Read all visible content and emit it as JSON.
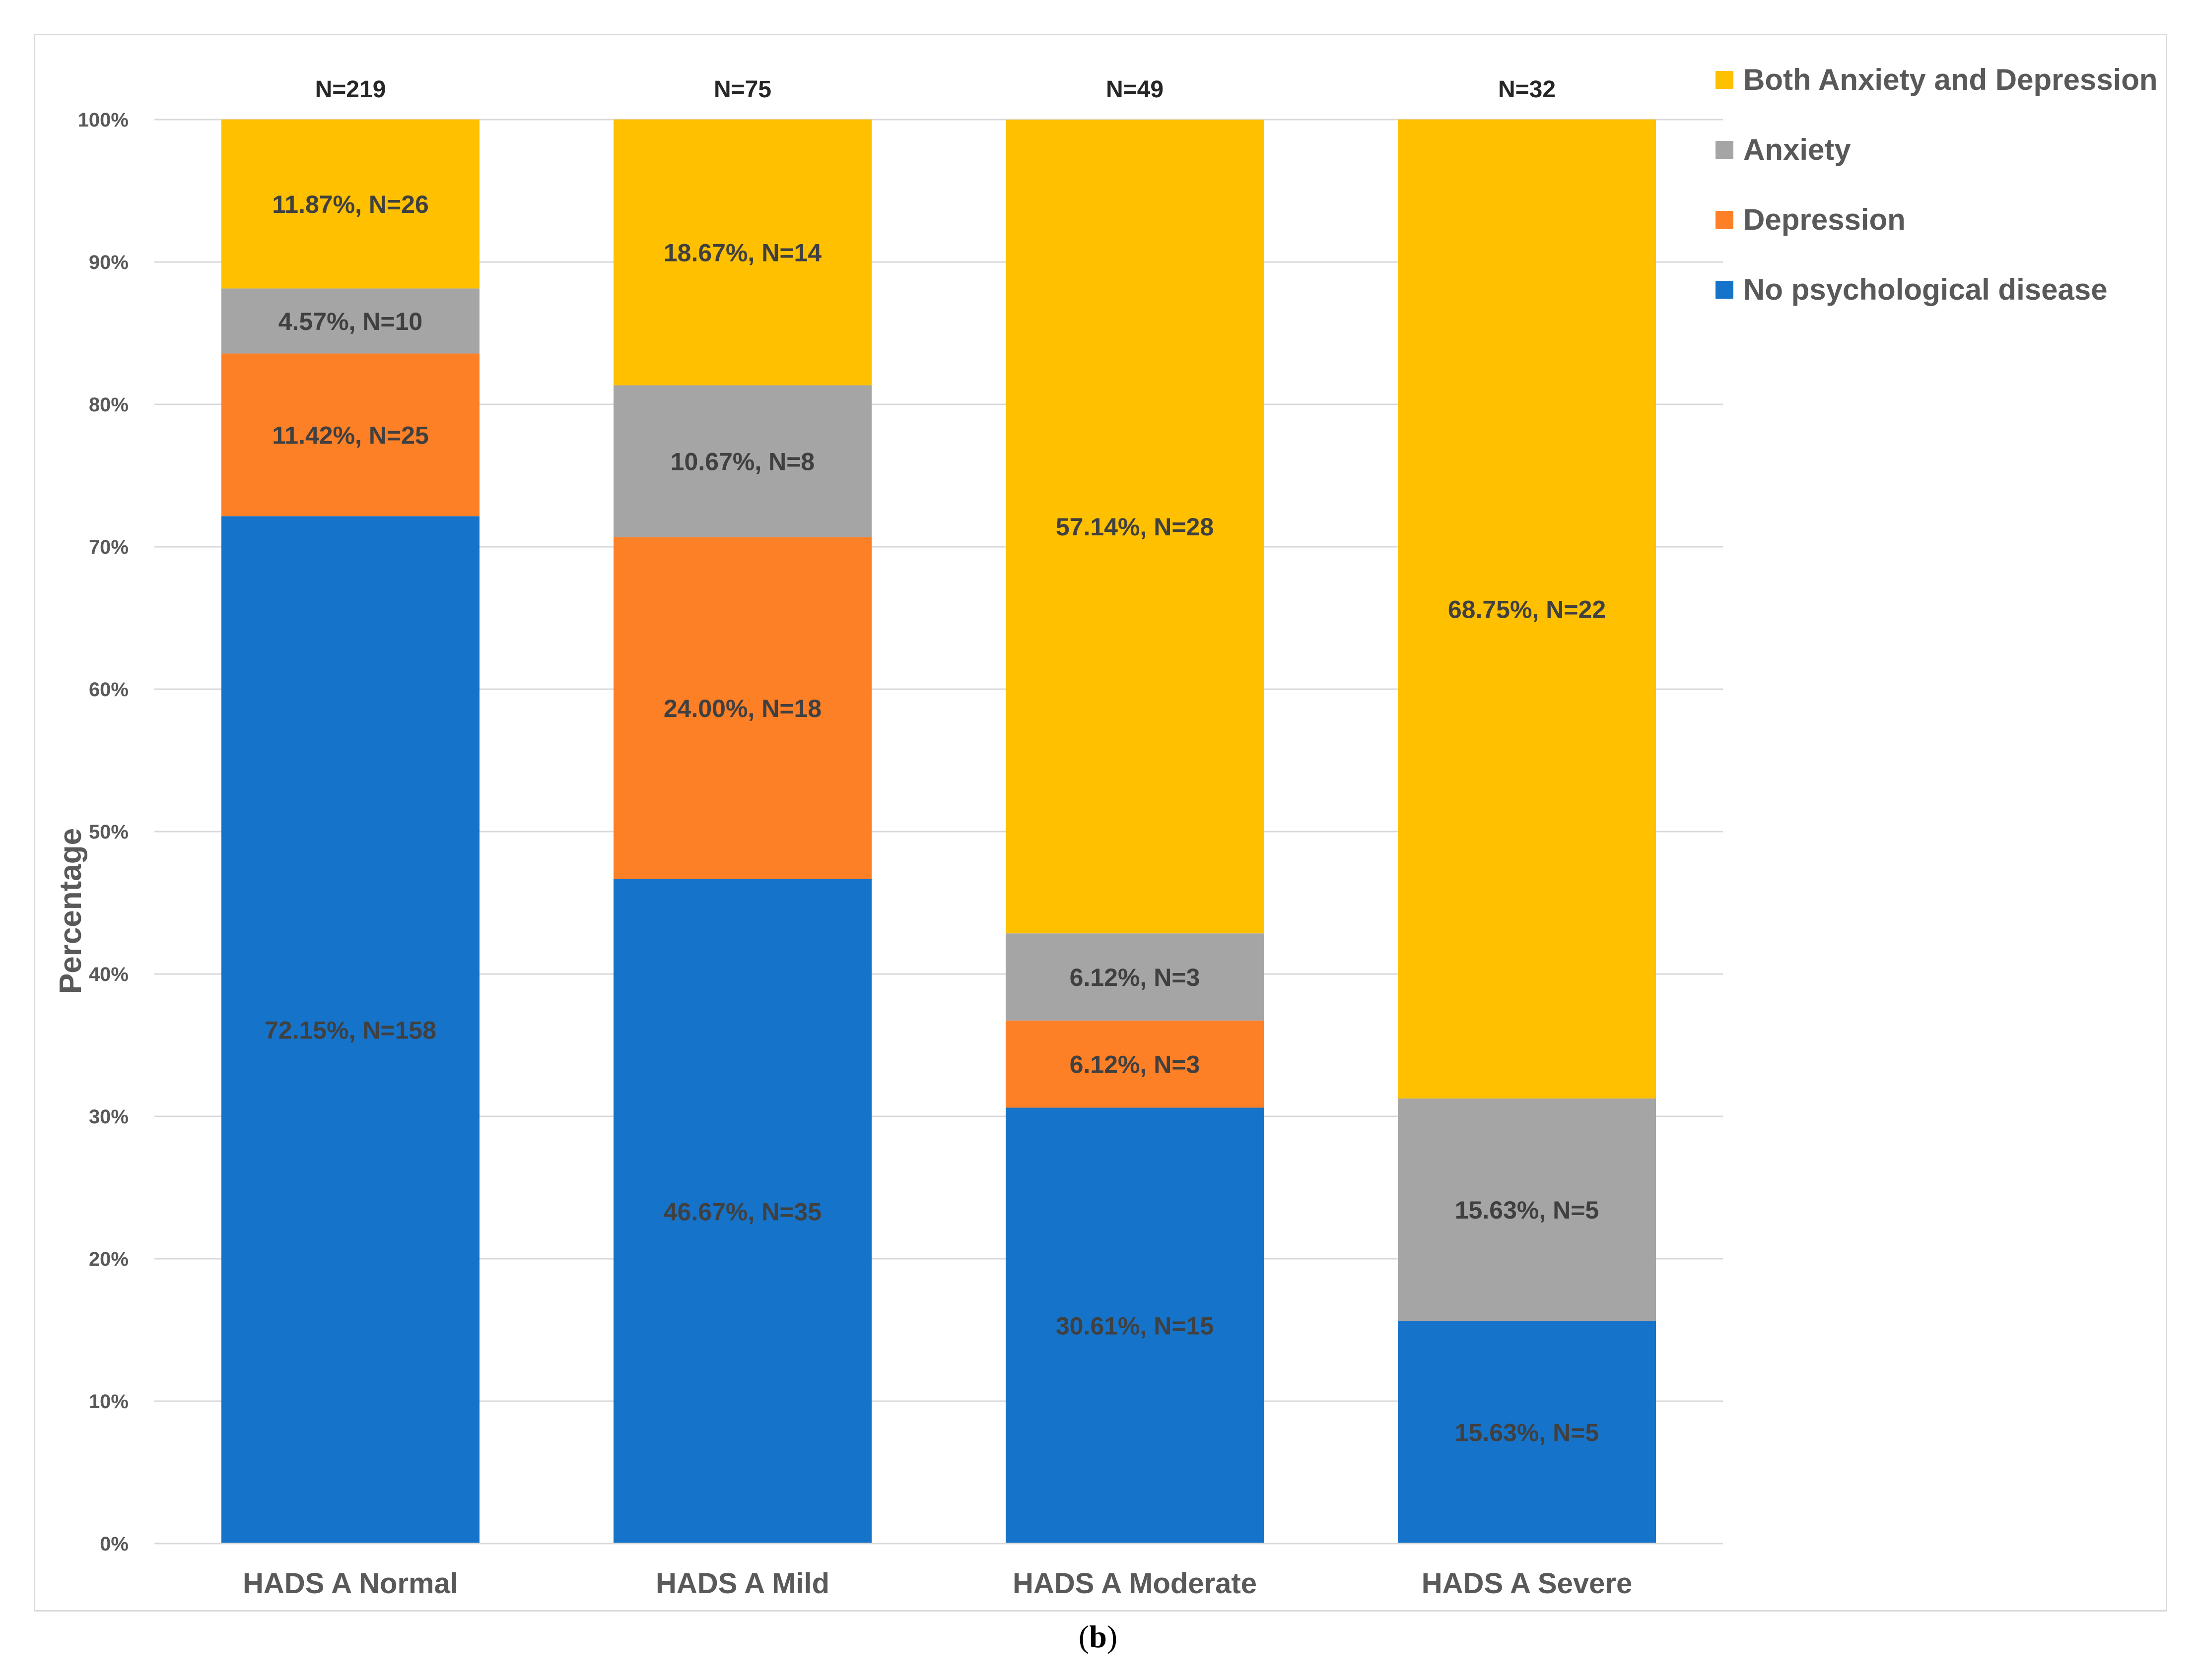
{
  "caption": {
    "open": "(",
    "letter": "b",
    "close": ")"
  },
  "colors": {
    "No psychological disease": "#1673ca",
    "Depression": "#fd7f26",
    "Anxiety": "#a5a5a5",
    "Both Anxiety and Depression": "#ffc000",
    "grid": "#d9d9d9"
  },
  "chart_data": {
    "type": "bar",
    "stacked": true,
    "title": "",
    "xlabel": "",
    "ylabel": "Percentage",
    "ylim": [
      0,
      100
    ],
    "yticks": [
      "0%",
      "10%",
      "20%",
      "30%",
      "40%",
      "50%",
      "60%",
      "70%",
      "80%",
      "90%",
      "100%"
    ],
    "grid": true,
    "legend_position": "top-right",
    "legend_order": [
      "Both Anxiety and Depression",
      "Anxiety",
      "Depression",
      "No psychological disease"
    ],
    "categories": [
      "HADS A Normal",
      "HADS A Mild",
      "HADS A Moderate",
      "HADS A Severe"
    ],
    "totals": [
      "N=219",
      "N=75",
      "N=49",
      "N=32"
    ],
    "series": [
      {
        "name": "No psychological disease",
        "values": [
          72.15,
          46.67,
          30.61,
          15.63
        ],
        "labels": [
          "72.15%, N=158",
          "46.67%, N=35",
          "30.61%, N=15",
          "15.63%, N=5"
        ]
      },
      {
        "name": "Depression",
        "values": [
          11.42,
          24.0,
          6.12,
          0
        ],
        "labels": [
          "11.42%, N=25",
          "24.00%, N=18",
          "6.12%, N=3",
          ""
        ]
      },
      {
        "name": "Anxiety",
        "values": [
          4.57,
          10.67,
          6.12,
          15.63
        ],
        "labels": [
          "4.57%, N=10",
          "10.67%, N=8",
          "6.12%, N=3",
          "15.63%, N=5"
        ]
      },
      {
        "name": "Both Anxiety and Depression",
        "values": [
          11.87,
          18.67,
          57.14,
          68.75
        ],
        "labels": [
          "11.87%, N=26",
          "18.67%, N=14",
          "57.14%, N=28",
          "68.75%, N=22"
        ]
      }
    ]
  }
}
